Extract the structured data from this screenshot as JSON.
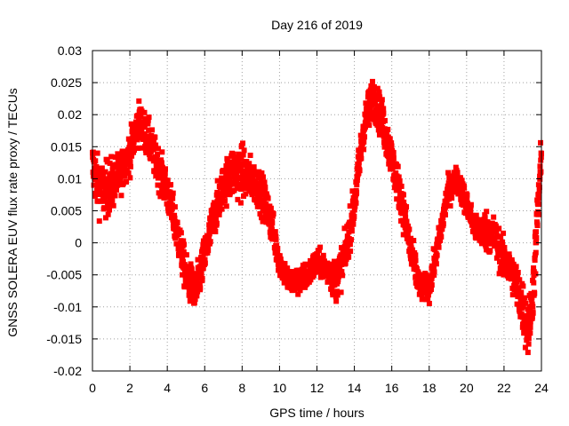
{
  "chart_data": {
    "type": "scatter",
    "title": "Day 216 of 2019",
    "xlabel": "GPS time / hours",
    "ylabel": "GNSS SOLERA EUV flux rate proxy / TECUs",
    "xlim": [
      0,
      24
    ],
    "ylim": [
      -0.02,
      0.03
    ],
    "x_ticks": [
      "0",
      "2",
      "4",
      "6",
      "8",
      "10",
      "12",
      "14",
      "16",
      "18",
      "20",
      "22",
      "24"
    ],
    "y_ticks": [
      "-0.02",
      "-0.015",
      "-0.01",
      "-0.005",
      "0",
      "0.005",
      "0.01",
      "0.015",
      "0.02",
      "0.025",
      "0.03"
    ],
    "grid": true,
    "marker": "square",
    "color": "#ff0000",
    "series_trend": {
      "x": [
        0.0,
        0.3,
        0.6,
        1.0,
        1.5,
        2.0,
        2.5,
        3.0,
        3.5,
        4.0,
        4.5,
        5.0,
        5.5,
        6.0,
        6.5,
        7.0,
        7.5,
        8.0,
        8.5,
        9.0,
        9.5,
        10.0,
        10.5,
        11.0,
        11.5,
        12.0,
        12.5,
        13.0,
        13.5,
        14.0,
        14.5,
        15.0,
        15.5,
        16.0,
        16.5,
        17.0,
        17.5,
        18.0,
        18.5,
        19.0,
        19.5,
        20.0,
        20.5,
        21.0,
        21.5,
        22.0,
        22.5,
        23.0,
        23.3,
        23.6,
        23.8,
        24.0
      ],
      "y": [
        0.012,
        0.009,
        0.008,
        0.009,
        0.011,
        0.014,
        0.019,
        0.016,
        0.012,
        0.008,
        0.002,
        -0.005,
        -0.008,
        -0.002,
        0.004,
        0.009,
        0.011,
        0.011,
        0.01,
        0.008,
        0.004,
        -0.003,
        -0.006,
        -0.006,
        -0.005,
        -0.003,
        -0.004,
        -0.006,
        -0.002,
        0.006,
        0.018,
        0.023,
        0.019,
        0.013,
        0.007,
        -0.001,
        -0.007,
        -0.007,
        0.0,
        0.008,
        0.01,
        0.006,
        0.002,
        0.002,
        0.001,
        -0.003,
        -0.005,
        -0.01,
        -0.014,
        -0.006,
        0.005,
        0.013
      ],
      "spread": [
        0.004,
        0.004,
        0.004,
        0.004,
        0.003,
        0.003,
        0.003,
        0.003,
        0.003,
        0.003,
        0.003,
        0.003,
        0.003,
        0.003,
        0.003,
        0.003,
        0.004,
        0.004,
        0.003,
        0.003,
        0.003,
        0.002,
        0.002,
        0.002,
        0.002,
        0.002,
        0.002,
        0.003,
        0.003,
        0.003,
        0.003,
        0.003,
        0.003,
        0.003,
        0.003,
        0.003,
        0.002,
        0.002,
        0.002,
        0.002,
        0.002,
        0.002,
        0.002,
        0.003,
        0.003,
        0.003,
        0.003,
        0.004,
        0.004,
        0.004,
        0.004,
        0.004
      ]
    }
  }
}
